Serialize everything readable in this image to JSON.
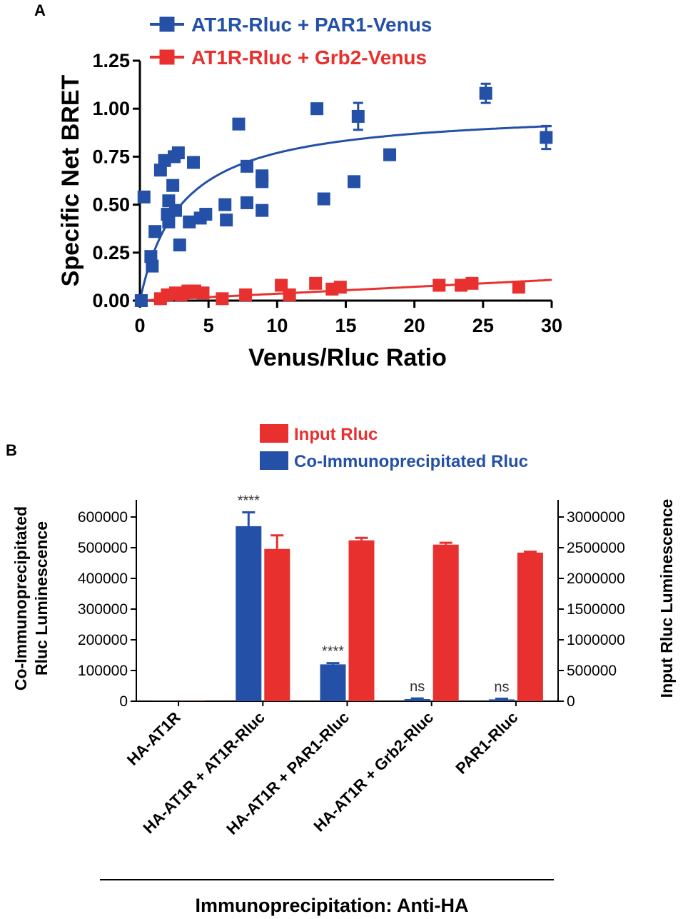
{
  "colors": {
    "blue": "#2450a8",
    "red": "#e8302e",
    "axis": "#000000"
  },
  "chart_data": [
    {
      "panel": "A",
      "type": "scatter",
      "title": "",
      "xlabel": "Venus/Rluc Ratio",
      "ylabel": "Specific Net BRET",
      "xlim": [
        0,
        30
      ],
      "ylim": [
        0,
        1.25
      ],
      "xticks": [
        "0",
        "5",
        "10",
        "15",
        "20",
        "25",
        "30"
      ],
      "yticks": [
        "0.00",
        "0.25",
        "0.50",
        "0.75",
        "1.00",
        "1.25"
      ],
      "legend_position": "top-center",
      "series": [
        {
          "name": "AT1R-Rluc + PAR1-Venus",
          "color": "#2450a8",
          "fit": {
            "model": "hyperbola",
            "bmax": 1.0,
            "kd": 3.0
          },
          "points": [
            {
              "x": 0.1,
              "y": 0.0
            },
            {
              "x": 0.3,
              "y": 0.54
            },
            {
              "x": 0.8,
              "y": 0.23
            },
            {
              "x": 0.9,
              "y": 0.18
            },
            {
              "x": 1.1,
              "y": 0.36
            },
            {
              "x": 1.5,
              "y": 0.68
            },
            {
              "x": 1.8,
              "y": 0.73
            },
            {
              "x": 2.0,
              "y": 0.45
            },
            {
              "x": 2.1,
              "y": 0.41
            },
            {
              "x": 2.1,
              "y": 0.52
            },
            {
              "x": 2.4,
              "y": 0.6
            },
            {
              "x": 2.5,
              "y": 0.75
            },
            {
              "x": 2.6,
              "y": 0.47
            },
            {
              "x": 2.8,
              "y": 0.77
            },
            {
              "x": 2.9,
              "y": 0.29
            },
            {
              "x": 3.6,
              "y": 0.41
            },
            {
              "x": 3.9,
              "y": 0.72
            },
            {
              "x": 4.4,
              "y": 0.43
            },
            {
              "x": 4.8,
              "y": 0.45
            },
            {
              "x": 6.2,
              "y": 0.5
            },
            {
              "x": 6.3,
              "y": 0.42
            },
            {
              "x": 7.2,
              "y": 0.92
            },
            {
              "x": 7.8,
              "y": 0.51
            },
            {
              "x": 7.8,
              "y": 0.7
            },
            {
              "x": 8.9,
              "y": 0.62
            },
            {
              "x": 8.9,
              "y": 0.65
            },
            {
              "x": 8.9,
              "y": 0.47
            },
            {
              "x": 12.9,
              "y": 1.0
            },
            {
              "x": 13.4,
              "y": 0.53
            },
            {
              "x": 15.6,
              "y": 0.62
            },
            {
              "x": 15.9,
              "y": 0.96,
              "err": 0.07
            },
            {
              "x": 18.2,
              "y": 0.76
            },
            {
              "x": 25.2,
              "y": 1.08,
              "err": 0.05
            },
            {
              "x": 29.6,
              "y": 0.85,
              "err": 0.06
            }
          ]
        },
        {
          "name": "AT1R-Rluc + Grb2-Venus",
          "color": "#e8302e",
          "fit": {
            "model": "linear",
            "slope": 0.0036
          },
          "points": [
            {
              "x": 0.1,
              "y": 0.0
            },
            {
              "x": 1.5,
              "y": 0.01
            },
            {
              "x": 2.0,
              "y": 0.03
            },
            {
              "x": 2.6,
              "y": 0.04
            },
            {
              "x": 3.0,
              "y": 0.03
            },
            {
              "x": 3.5,
              "y": 0.05
            },
            {
              "x": 4.0,
              "y": 0.05
            },
            {
              "x": 4.6,
              "y": 0.04
            },
            {
              "x": 6.0,
              "y": 0.01
            },
            {
              "x": 7.7,
              "y": 0.03
            },
            {
              "x": 10.3,
              "y": 0.08
            },
            {
              "x": 10.9,
              "y": 0.03
            },
            {
              "x": 12.8,
              "y": 0.09
            },
            {
              "x": 14.0,
              "y": 0.06
            },
            {
              "x": 14.6,
              "y": 0.07
            },
            {
              "x": 21.8,
              "y": 0.08
            },
            {
              "x": 23.4,
              "y": 0.08
            },
            {
              "x": 24.2,
              "y": 0.09
            },
            {
              "x": 27.6,
              "y": 0.07
            }
          ]
        }
      ]
    },
    {
      "panel": "B",
      "type": "bar",
      "title": "",
      "xlabel": "Immunoprecipitation: Anti-HA",
      "ylabel_left": "Co-Immunoprecipitated Rluc Luminescence",
      "ylabel_left_lines": [
        "Co-Immunoprecipitated",
        "Rluc Luminescence"
      ],
      "ylabel_right": "Input Rluc Luminescence",
      "ylim_left": [
        0,
        600000
      ],
      "ylim_right": [
        0,
        3000000
      ],
      "yticks_left": [
        "0",
        "100000",
        "200000",
        "300000",
        "400000",
        "500000",
        "600000"
      ],
      "yticks_right": [
        "0",
        "500000",
        "1000000",
        "1500000",
        "2000000",
        "2500000",
        "3000000"
      ],
      "categories": [
        "HA-AT1R",
        "HA-AT1R + AT1R-Rluc",
        "HA-AT1R + PAR1-Rluc",
        "HA-AT1R + Grb2-Rluc",
        "PAR1-Rluc"
      ],
      "legend_position": "top-center",
      "series": [
        {
          "name": "Input Rluc",
          "axis": "right",
          "color": "#e8302e",
          "values": [
            5000,
            2480000,
            2620000,
            2550000,
            2420000
          ],
          "errors": [
            0,
            220000,
            40000,
            30000,
            15000
          ]
        },
        {
          "name": "Co-Immunoprecipitated Rluc",
          "axis": "left",
          "color": "#2450a8",
          "values": [
            500,
            570000,
            120000,
            7000,
            6000
          ],
          "errors": [
            0,
            45000,
            4000,
            2000,
            2000
          ]
        }
      ],
      "annotations": [
        "",
        "****",
        "****",
        "ns",
        "ns"
      ]
    }
  ]
}
